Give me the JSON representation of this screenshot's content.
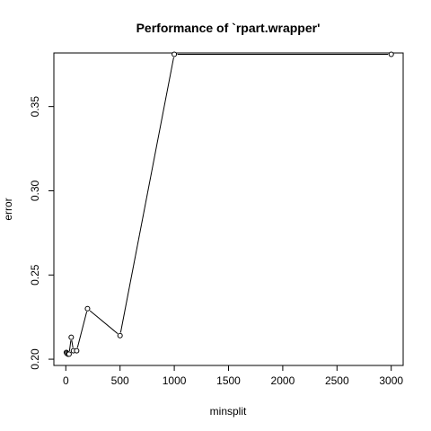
{
  "chart_data": {
    "type": "line",
    "title": "Performance of `rpart.wrapper'",
    "xlabel": "minsplit",
    "ylabel": "error",
    "xlim": [
      -110,
      3110
    ],
    "ylim": [
      0.1963,
      0.3818
    ],
    "x_ticks": [
      0,
      500,
      1000,
      1500,
      2000,
      2500,
      3000
    ],
    "y_ticks": [
      0.2,
      0.25,
      0.3,
      0.35
    ],
    "y_tick_labels": [
      "0.20",
      "0.25",
      "0.30",
      "0.35"
    ],
    "grid": false,
    "series": [
      {
        "x": [
          5,
          10,
          20,
          30,
          50,
          70,
          100,
          200,
          500,
          1000,
          3000
        ],
        "y": [
          0.204,
          0.2035,
          0.203,
          0.203,
          0.213,
          0.205,
          0.205,
          0.23,
          0.214,
          0.381,
          0.381
        ]
      }
    ]
  }
}
